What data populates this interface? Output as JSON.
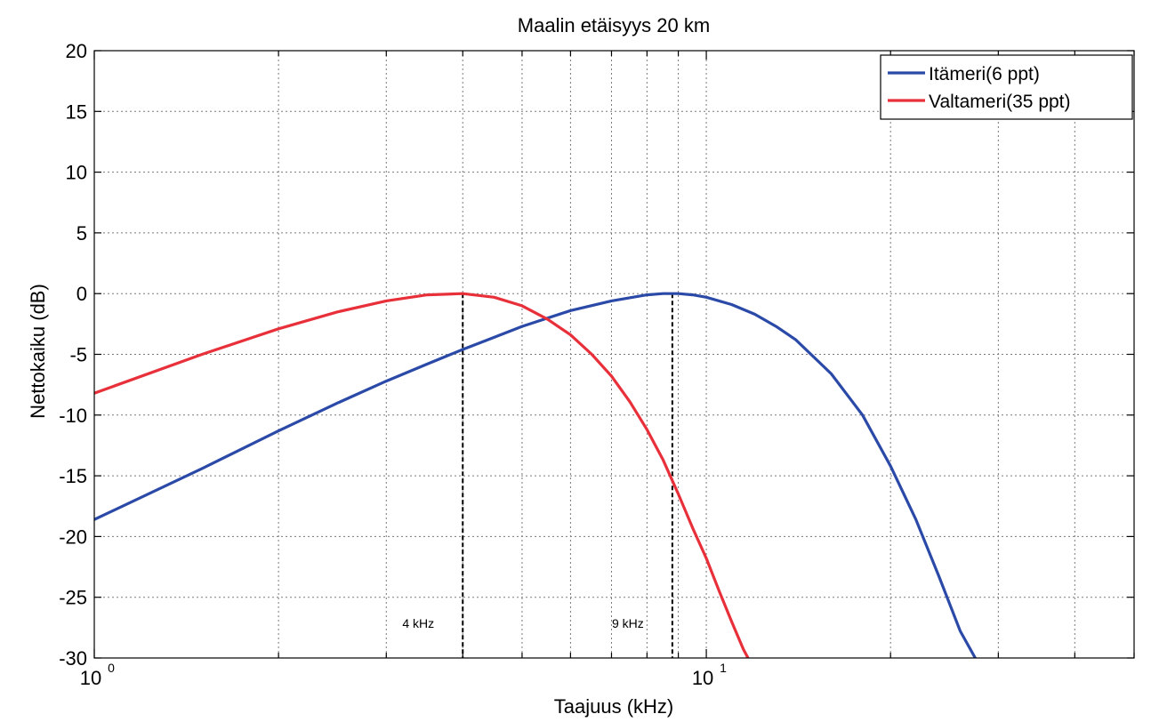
{
  "chart_data": {
    "type": "line",
    "title": "Maalin etäisyys 20 km",
    "xlabel": "Taajuus (kHz)",
    "ylabel": "Nettokaiku (dB)",
    "x_scale": "log",
    "xlim": [
      1,
      50
    ],
    "ylim": [
      -30,
      20
    ],
    "y_ticks": [
      "20",
      "15",
      "10",
      "5",
      "0",
      "-5",
      "-10",
      "-15",
      "-20",
      "-25",
      "-30"
    ],
    "x_tick_labels": [
      {
        "base": "10",
        "exp": "0"
      },
      {
        "base": "10",
        "exp": "1"
      }
    ],
    "grid": true,
    "legend_position": "top-right",
    "series": [
      {
        "name": "Itämeri(6 ppt)",
        "color": "#2b4aa8",
        "x": [
          1,
          1.5,
          2,
          2.5,
          3,
          3.5,
          4,
          4.5,
          5,
          6,
          7,
          8,
          8.5,
          9,
          9.5,
          10,
          11,
          12,
          13,
          14,
          16,
          18,
          20,
          22,
          24,
          26,
          27.5
        ],
        "y": [
          -18.6,
          -14.4,
          -11.3,
          -9.0,
          -7.2,
          -5.8,
          -4.6,
          -3.6,
          -2.7,
          -1.4,
          -0.6,
          -0.1,
          0,
          0,
          -0.1,
          -0.3,
          -0.9,
          -1.7,
          -2.7,
          -3.8,
          -6.6,
          -10.0,
          -14.2,
          -18.6,
          -23.3,
          -27.8,
          -30.0
        ]
      },
      {
        "name": "Valtameri(35 ppt)",
        "color": "#e8303a",
        "x": [
          1,
          1.5,
          2,
          2.5,
          3,
          3.5,
          4,
          4.5,
          5,
          5.5,
          6,
          6.5,
          7,
          7.5,
          8,
          8.5,
          9,
          9.5,
          10,
          10.5,
          11,
          11.5,
          11.7
        ],
        "y": [
          -8.2,
          -5.0,
          -2.9,
          -1.5,
          -0.6,
          -0.1,
          0,
          -0.3,
          -1.0,
          -2.1,
          -3.4,
          -5.0,
          -6.8,
          -8.9,
          -11.2,
          -13.7,
          -16.5,
          -19.3,
          -21.8,
          -24.5,
          -27.0,
          -29.3,
          -30.0
        ]
      }
    ],
    "reference_lines": [
      {
        "label": "4 kHz",
        "x": 4
      },
      {
        "label": "9 kHz",
        "x": 8.8
      }
    ]
  }
}
